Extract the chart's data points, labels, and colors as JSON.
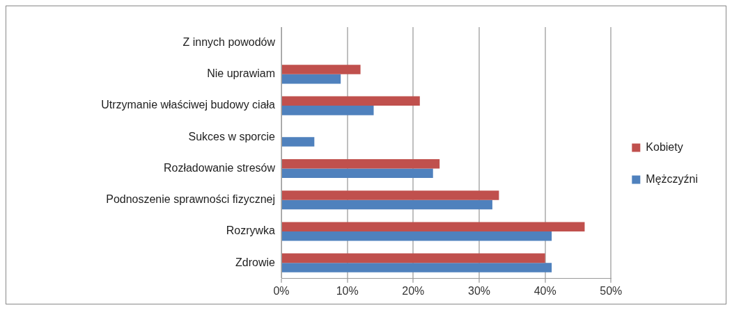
{
  "chart_data": {
    "type": "bar",
    "orientation": "horizontal",
    "categories": [
      "Z innych powodów",
      "Nie uprawiam",
      "Utrzymanie właściwej budowy ciała",
      "Sukces w sporcie",
      "Rozładowanie stresów",
      "Podnoszenie sprawności fizycznej",
      "Rozrywka",
      "Zdrowie"
    ],
    "series": [
      {
        "name": "Kobiety",
        "color": "#c0504d",
        "values": [
          0,
          12,
          21,
          0,
          24,
          33,
          46,
          40
        ]
      },
      {
        "name": "Mężczyźni",
        "color": "#4f81bd",
        "values": [
          0,
          9,
          14,
          5,
          23,
          32,
          41,
          41
        ]
      }
    ],
    "xlim": [
      0,
      50
    ],
    "xticks": [
      {
        "value": 0,
        "label": "0%"
      },
      {
        "value": 10,
        "label": "10%"
      },
      {
        "value": 20,
        "label": "20%"
      },
      {
        "value": 30,
        "label": "30%"
      },
      {
        "value": 40,
        "label": "40%"
      },
      {
        "value": 50,
        "label": "50%"
      }
    ],
    "grid": "x",
    "legend": "right"
  }
}
